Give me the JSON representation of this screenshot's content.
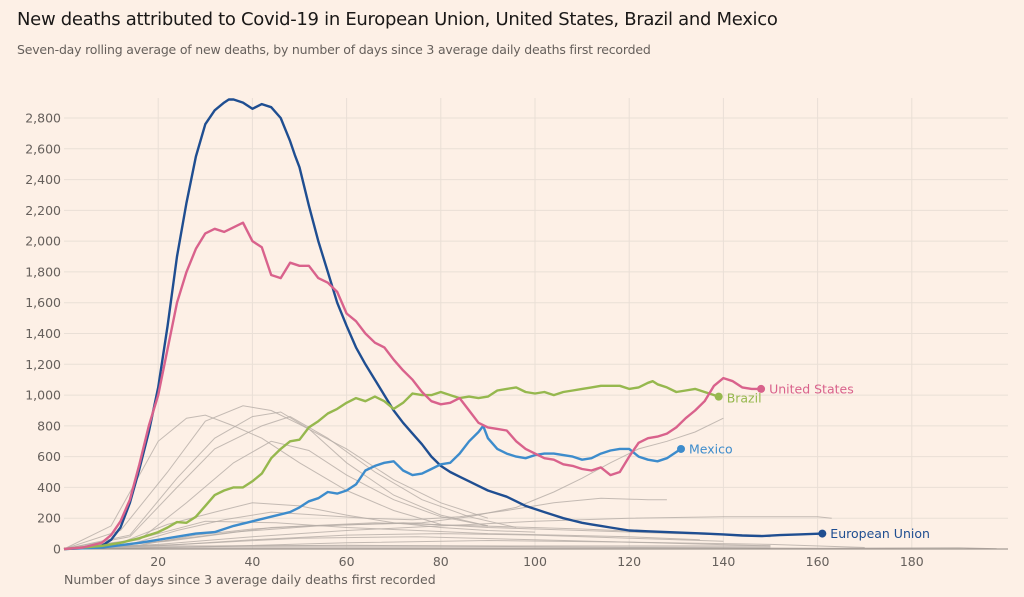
{
  "header": {
    "title": "New deaths attributed to Covid-19 in European Union, United States, Brazil and Mexico",
    "subtitle": "Seven-day rolling average of new deaths, by number of days since 3 average daily deaths first recorded"
  },
  "colors": {
    "background": "#fdf0e6",
    "grid": "#e9dfd6",
    "other_countries": "#b5aca6",
    "european_union": "#1f4e91",
    "united_states": "#d9628c",
    "brazil": "#96b84e",
    "mexico": "#3d8ccc"
  },
  "chart_data": {
    "type": "line",
    "title": "New deaths attributed to Covid-19 in European Union, United States, Brazil and Mexico",
    "subtitle": "Seven-day rolling average of new deaths, by number of days since 3 average daily deaths first recorded",
    "xlabel": "Number of days since 3 average daily deaths first recorded",
    "ylabel": "",
    "xlim": [
      0,
      200
    ],
    "ylim": [
      0,
      2900
    ],
    "grid": true,
    "legend": "direct labels at line ends",
    "x_ticks": [
      20,
      40,
      60,
      80,
      100,
      120,
      140,
      160,
      180
    ],
    "x_tick_labels": [
      "20",
      "40",
      "60",
      "80",
      "100",
      "120",
      "140",
      "160",
      "180"
    ],
    "y_ticks": [
      0,
      200,
      400,
      600,
      800,
      1000,
      1200,
      1400,
      1600,
      1800,
      2000,
      2200,
      2400,
      2600,
      2800
    ],
    "y_tick_labels": [
      "0",
      "200",
      "400",
      "600",
      "800",
      "1,000",
      "1,200",
      "1,400",
      "1,600",
      "1,800",
      "2,000",
      "2,200",
      "2,400",
      "2,600",
      "2,800"
    ],
    "series": [
      {
        "name": "European Union",
        "key": "european_union",
        "label": "European Union",
        "x": [
          0,
          4,
          8,
          10,
          12,
          14,
          16,
          18,
          20,
          22,
          24,
          26,
          28,
          30,
          32,
          34,
          35,
          36,
          38,
          40,
          42,
          44,
          46,
          48,
          49,
          50,
          52,
          54,
          56,
          58,
          60,
          62,
          64,
          66,
          68,
          70,
          72,
          74,
          76,
          78,
          80,
          82,
          84,
          86,
          88,
          90,
          92,
          94,
          96,
          98,
          100,
          102,
          104,
          106,
          108,
          110,
          112,
          114,
          116,
          118,
          120,
          124,
          128,
          132,
          136,
          140,
          144,
          148,
          152,
          156,
          161
        ],
        "values": [
          0,
          5,
          20,
          60,
          140,
          300,
          520,
          760,
          1050,
          1450,
          1900,
          2250,
          2550,
          2760,
          2850,
          2900,
          2920,
          2920,
          2900,
          2860,
          2890,
          2870,
          2800,
          2650,
          2560,
          2480,
          2230,
          2000,
          1800,
          1600,
          1450,
          1310,
          1200,
          1100,
          1000,
          900,
          820,
          750,
          680,
          600,
          540,
          500,
          470,
          440,
          410,
          380,
          360,
          340,
          310,
          280,
          260,
          240,
          220,
          200,
          185,
          170,
          160,
          150,
          140,
          130,
          120,
          115,
          110,
          105,
          100,
          95,
          88,
          84,
          90,
          95,
          100
        ]
      },
      {
        "name": "United States",
        "key": "united_states",
        "label": "United States",
        "x": [
          0,
          4,
          8,
          10,
          12,
          14,
          16,
          18,
          20,
          22,
          24,
          26,
          28,
          30,
          32,
          34,
          36,
          38,
          40,
          42,
          44,
          46,
          48,
          50,
          52,
          54,
          56,
          58,
          60,
          62,
          64,
          66,
          68,
          70,
          72,
          74,
          76,
          78,
          80,
          82,
          84,
          86,
          88,
          90,
          92,
          94,
          96,
          98,
          100,
          102,
          104,
          106,
          108,
          110,
          112,
          114,
          116,
          118,
          120,
          122,
          124,
          126,
          128,
          130,
          132,
          134,
          136,
          138,
          140,
          142,
          144,
          146,
          148
        ],
        "values": [
          0,
          10,
          40,
          90,
          180,
          320,
          550,
          800,
          1000,
          1300,
          1600,
          1800,
          1950,
          2050,
          2080,
          2060,
          2090,
          2120,
          2000,
          1960,
          1780,
          1760,
          1860,
          1840,
          1840,
          1760,
          1730,
          1670,
          1530,
          1480,
          1400,
          1340,
          1310,
          1230,
          1160,
          1100,
          1020,
          960,
          940,
          950,
          980,
          900,
          820,
          790,
          780,
          770,
          700,
          650,
          620,
          590,
          580,
          550,
          540,
          520,
          510,
          530,
          480,
          500,
          600,
          690,
          720,
          730,
          750,
          790,
          850,
          900,
          960,
          1060,
          1110,
          1090,
          1050,
          1040,
          1040
        ]
      },
      {
        "name": "Brazil",
        "key": "brazil",
        "label": "Brazil",
        "x": [
          0,
          8,
          12,
          16,
          20,
          22,
          24,
          26,
          28,
          30,
          32,
          34,
          36,
          38,
          40,
          42,
          44,
          46,
          48,
          50,
          52,
          54,
          56,
          58,
          60,
          62,
          64,
          66,
          68,
          70,
          72,
          74,
          76,
          78,
          80,
          82,
          84,
          86,
          88,
          90,
          92,
          94,
          96,
          98,
          100,
          102,
          104,
          106,
          108,
          110,
          112,
          114,
          116,
          118,
          120,
          122,
          124,
          125,
          126,
          128,
          130,
          132,
          134,
          136,
          139
        ],
        "values": [
          0,
          20,
          40,
          70,
          110,
          140,
          175,
          170,
          210,
          280,
          350,
          380,
          400,
          400,
          440,
          490,
          590,
          650,
          700,
          710,
          790,
          830,
          880,
          910,
          950,
          980,
          960,
          990,
          960,
          910,
          950,
          1010,
          1000,
          1000,
          1020,
          1000,
          980,
          990,
          980,
          990,
          1030,
          1040,
          1050,
          1020,
          1010,
          1020,
          1000,
          1020,
          1030,
          1040,
          1050,
          1060,
          1060,
          1060,
          1040,
          1050,
          1080,
          1090,
          1070,
          1050,
          1020,
          1030,
          1040,
          1020,
          990
        ]
      },
      {
        "name": "Mexico",
        "key": "mexico",
        "label": "Mexico",
        "x": [
          0,
          8,
          12,
          16,
          20,
          24,
          28,
          32,
          36,
          40,
          44,
          48,
          50,
          52,
          54,
          56,
          58,
          60,
          62,
          64,
          66,
          68,
          70,
          72,
          74,
          76,
          78,
          80,
          82,
          84,
          86,
          88,
          89,
          90,
          92,
          94,
          96,
          98,
          100,
          102,
          104,
          106,
          108,
          110,
          112,
          114,
          116,
          118,
          120,
          122,
          124,
          126,
          128,
          130,
          131
        ],
        "values": [
          0,
          10,
          25,
          40,
          60,
          80,
          100,
          110,
          150,
          180,
          210,
          240,
          270,
          310,
          330,
          370,
          360,
          380,
          420,
          510,
          540,
          560,
          570,
          510,
          480,
          490,
          520,
          550,
          560,
          620,
          700,
          760,
          800,
          720,
          650,
          620,
          600,
          590,
          610,
          620,
          620,
          610,
          600,
          580,
          590,
          620,
          640,
          650,
          650,
          600,
          580,
          570,
          590,
          630,
          650
        ]
      }
    ],
    "other_countries": {
      "name": "Other countries",
      "note": "unlabelled grey lines for other countries",
      "lines": [
        {
          "x": [
            0,
            10,
            20,
            26,
            30,
            36,
            42,
            50,
            60,
            70,
            80
          ],
          "values": [
            0,
            150,
            700,
            850,
            870,
            800,
            720,
            560,
            380,
            250,
            160
          ]
        },
        {
          "x": [
            0,
            12,
            22,
            30,
            38,
            44,
            50,
            60,
            70,
            80,
            90
          ],
          "values": [
            0,
            120,
            500,
            830,
            930,
            900,
            810,
            650,
            450,
            300,
            200
          ]
        },
        {
          "x": [
            0,
            14,
            24,
            32,
            40,
            46,
            52,
            60,
            70,
            80,
            90
          ],
          "values": [
            0,
            90,
            460,
            720,
            860,
            890,
            780,
            560,
            350,
            220,
            150
          ]
        },
        {
          "x": [
            0,
            14,
            24,
            32,
            42,
            48,
            56,
            66,
            76,
            86,
            96
          ],
          "values": [
            0,
            80,
            400,
            650,
            800,
            860,
            720,
            500,
            320,
            210,
            140
          ]
        },
        {
          "x": [
            0,
            16,
            26,
            36,
            44,
            52,
            60,
            70,
            80,
            90
          ],
          "values": [
            0,
            60,
            300,
            560,
            700,
            640,
            480,
            320,
            210,
            150
          ]
        },
        {
          "x": [
            0,
            12,
            22,
            32,
            40,
            50,
            60,
            70,
            80,
            90,
            100
          ],
          "values": [
            0,
            40,
            160,
            240,
            300,
            280,
            220,
            170,
            140,
            120,
            110
          ]
        },
        {
          "x": [
            0,
            14,
            24,
            34,
            44,
            54,
            64,
            74,
            84,
            94,
            104,
            114,
            124,
            128
          ],
          "values": [
            0,
            30,
            120,
            190,
            240,
            220,
            200,
            190,
            210,
            250,
            300,
            330,
            320,
            320
          ]
        },
        {
          "x": [
            0,
            16,
            28,
            40,
            52,
            64,
            76,
            86,
            96,
            104,
            110,
            116,
            122,
            128,
            134,
            140
          ],
          "values": [
            0,
            25,
            90,
            130,
            150,
            160,
            170,
            210,
            270,
            370,
            460,
            560,
            650,
            700,
            760,
            850
          ]
        },
        {
          "x": [
            0,
            20,
            40,
            60,
            80,
            100,
            120,
            140,
            150,
            160,
            163
          ],
          "values": [
            0,
            30,
            80,
            120,
            150,
            180,
            200,
            210,
            210,
            210,
            200
          ]
        },
        {
          "x": [
            0,
            18,
            36,
            54,
            72,
            90,
            110,
            130,
            148
          ],
          "values": [
            0,
            40,
            110,
            150,
            170,
            140,
            120,
            100,
            90
          ]
        },
        {
          "x": [
            0,
            22,
            44,
            66,
            88,
            110,
            132,
            150
          ],
          "values": [
            0,
            50,
            140,
            170,
            150,
            130,
            100,
            80
          ]
        },
        {
          "x": [
            0,
            15,
            30,
            45,
            60,
            75,
            90,
            105,
            120,
            135
          ],
          "values": [
            0,
            60,
            180,
            170,
            140,
            120,
            100,
            90,
            80,
            60
          ]
        },
        {
          "x": [
            0,
            20,
            40,
            60,
            80,
            100,
            120,
            140
          ],
          "values": [
            0,
            20,
            60,
            90,
            100,
            90,
            70,
            50
          ]
        },
        {
          "x": [
            0,
            25,
            50,
            75,
            100,
            125,
            150
          ],
          "values": [
            0,
            30,
            70,
            80,
            60,
            40,
            20
          ]
        },
        {
          "x": [
            0,
            30,
            60,
            90,
            120,
            150,
            170
          ],
          "values": [
            0,
            15,
            40,
            55,
            45,
            30,
            10
          ]
        },
        {
          "x": [
            0,
            20,
            40,
            60,
            80,
            100,
            120,
            140,
            160,
            190,
            198
          ],
          "values": [
            0,
            10,
            20,
            25,
            20,
            15,
            10,
            8,
            5,
            8,
            2
          ]
        }
      ]
    }
  }
}
